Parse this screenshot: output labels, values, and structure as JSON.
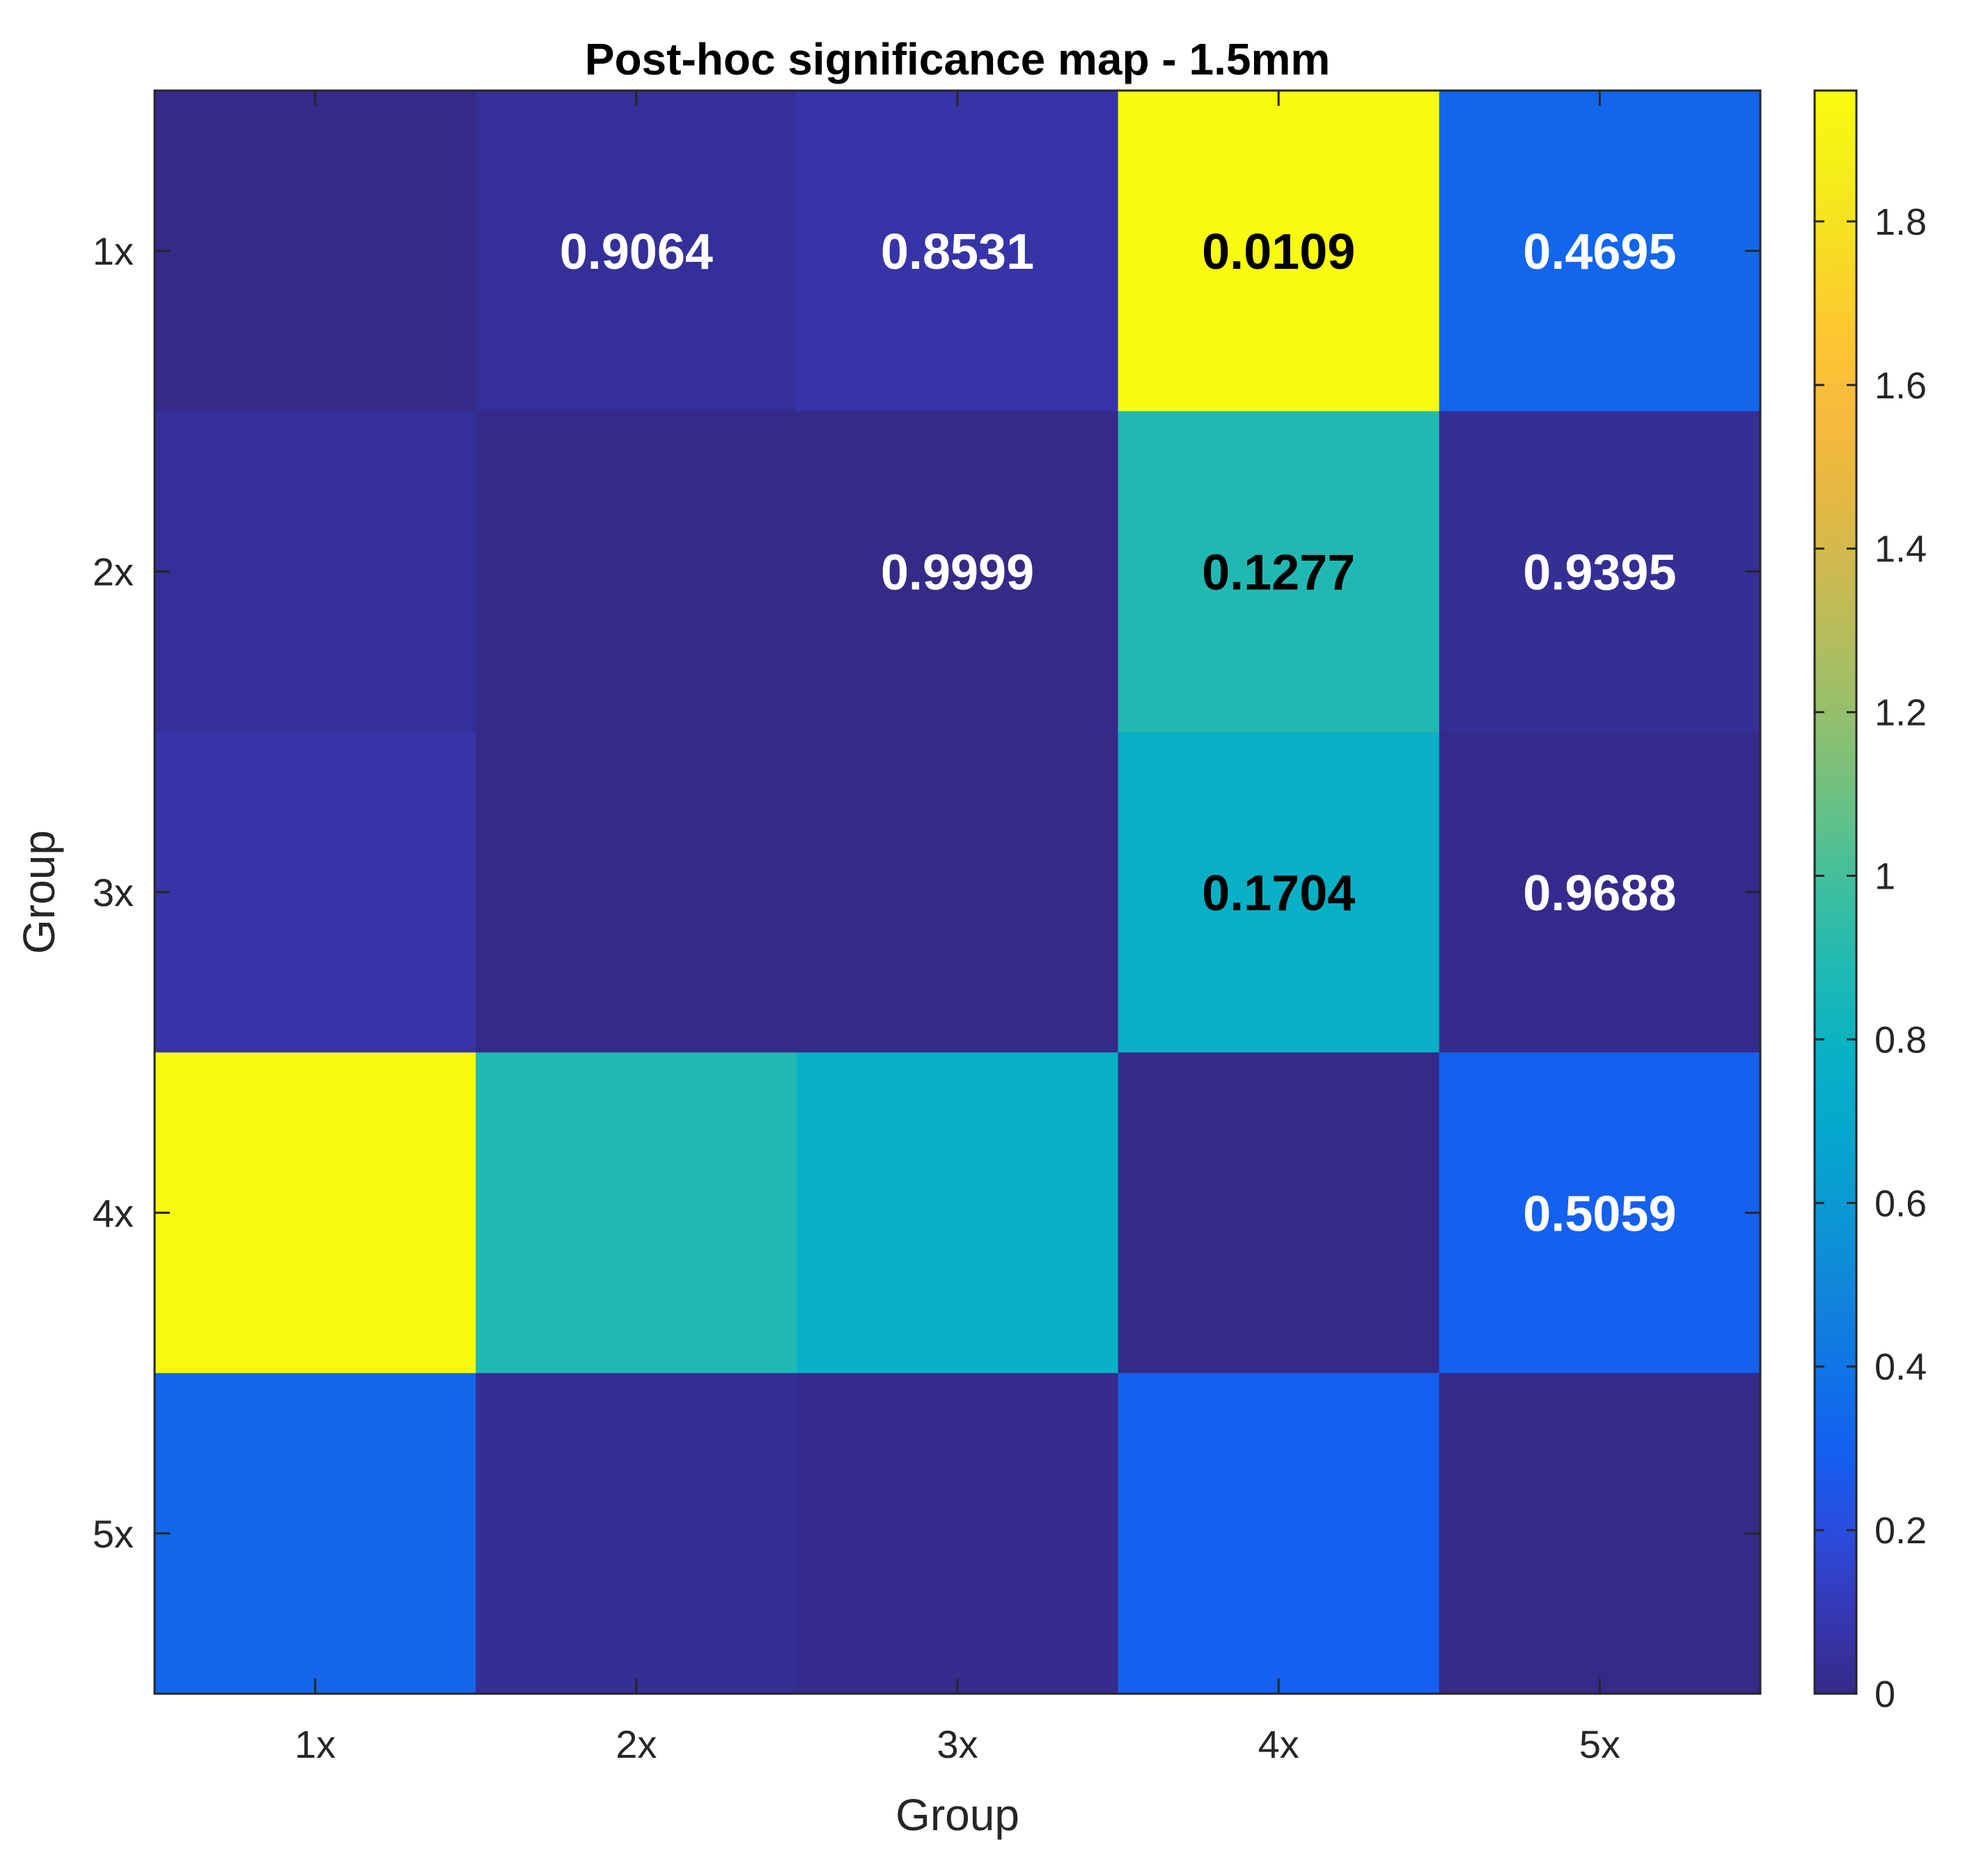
{
  "chart_data": {
    "type": "heatmap",
    "title": "Post-hoc significance map - 1.5mm",
    "xlabel": "Group",
    "ylabel": "Group",
    "x_categories": [
      "1x",
      "2x",
      "3x",
      "4x",
      "5x"
    ],
    "y_categories": [
      "1x",
      "2x",
      "3x",
      "4x",
      "5x"
    ],
    "values": [
      [
        0.0,
        0.04,
        0.07,
        1.96,
        0.33
      ],
      [
        0.04,
        0.0,
        0.0,
        0.89,
        0.03
      ],
      [
        0.07,
        0.0,
        0.0,
        0.77,
        0.01
      ],
      [
        1.96,
        0.89,
        0.77,
        0.0,
        0.3
      ],
      [
        0.33,
        0.03,
        0.01,
        0.3,
        0.0
      ]
    ],
    "cell_labels": [
      [
        "",
        "0.9064",
        "0.8531",
        "0.0109",
        "0.4695"
      ],
      [
        "",
        "",
        "0.9999",
        "0.1277",
        "0.9395"
      ],
      [
        "",
        "",
        "",
        "0.1704",
        "0.9688"
      ],
      [
        "",
        "",
        "",
        "",
        "0.5059"
      ],
      [
        "",
        "",
        "",
        "",
        ""
      ]
    ],
    "colorbar": {
      "range": [
        0,
        1.96
      ],
      "ticks": [
        "0",
        "0.2",
        "0.4",
        "0.6",
        "0.8",
        "1",
        "1.2",
        "1.4",
        "1.6",
        "1.8"
      ],
      "tick_values": [
        0,
        0.2,
        0.4,
        0.6,
        0.8,
        1.0,
        1.2,
        1.4,
        1.6,
        1.8
      ]
    },
    "colormap": "parula",
    "grid": false
  }
}
